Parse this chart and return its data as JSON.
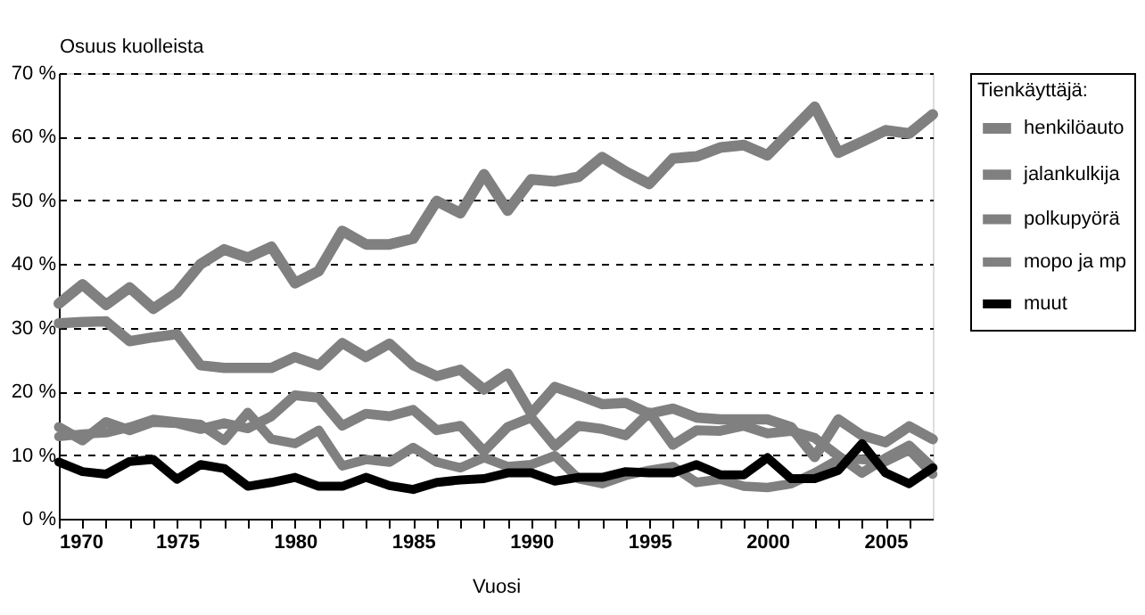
{
  "chart_data": {
    "type": "line",
    "xlabel": "Vuosi",
    "ylabel": "Osuus kuolleista",
    "legend_title": "Tienkäyttäjä:",
    "legend": "right",
    "grid": "y",
    "line_style": "solid",
    "marker": "none",
    "x": [
      1970,
      1971,
      1972,
      1973,
      1974,
      1975,
      1976,
      1977,
      1978,
      1979,
      1980,
      1981,
      1982,
      1983,
      1984,
      1985,
      1986,
      1987,
      1988,
      1989,
      1990,
      1991,
      1992,
      1993,
      1994,
      1995,
      1996,
      1997,
      1998,
      1999,
      2000,
      2001,
      2002,
      2003,
      2004,
      2005,
      2006,
      2007
    ],
    "xlim": [
      1970,
      2007
    ],
    "xticks": [
      1970,
      {
        "value": 1971,
        "label": null
      },
      {
        "value": 1972,
        "label": null
      },
      {
        "value": 1973,
        "label": null
      },
      {
        "value": 1974,
        "label": null
      },
      1975,
      {
        "value": 1976,
        "label": null
      },
      {
        "value": 1977,
        "label": null
      },
      {
        "value": 1978,
        "label": null
      },
      {
        "value": 1979,
        "label": null
      },
      1980,
      {
        "value": 1981,
        "label": null
      },
      {
        "value": 1982,
        "label": null
      },
      {
        "value": 1983,
        "label": null
      },
      {
        "value": 1984,
        "label": null
      },
      1985,
      {
        "value": 1986,
        "label": null
      },
      {
        "value": 1987,
        "label": null
      },
      {
        "value": 1988,
        "label": null
      },
      {
        "value": 1989,
        "label": null
      },
      1990,
      {
        "value": 1991,
        "label": null
      },
      {
        "value": 1992,
        "label": null
      },
      {
        "value": 1993,
        "label": null
      },
      {
        "value": 1994,
        "label": null
      },
      1995,
      {
        "value": 1996,
        "label": null
      },
      {
        "value": 1997,
        "label": null
      },
      {
        "value": 1998,
        "label": null
      },
      {
        "value": 1999,
        "label": null
      },
      2000,
      {
        "value": 2001,
        "label": null
      },
      {
        "value": 2002,
        "label": null
      },
      {
        "value": 2003,
        "label": null
      },
      {
        "value": 2004,
        "label": null
      },
      2005,
      {
        "value": 2006,
        "label": null
      }
    ],
    "ylim": [
      0,
      70
    ],
    "yticks": [
      {
        "value": 0,
        "label": "0 %"
      },
      {
        "value": 10,
        "label": "10 %"
      },
      {
        "value": 20,
        "label": "20 %"
      },
      {
        "value": 30,
        "label": "30 %"
      },
      {
        "value": 40,
        "label": "40 %"
      },
      {
        "value": 50,
        "label": "50 %"
      },
      {
        "value": 60,
        "label": "60 %"
      },
      {
        "value": 70,
        "label": "70 %"
      }
    ],
    "series": [
      {
        "name": "henkilöauto",
        "color": "#808080",
        "values": [
          33.8,
          36.8,
          33.6,
          36.3,
          33,
          35.5,
          40,
          42.3,
          41,
          42.7,
          37,
          38.9,
          45.2,
          43.1,
          43.1,
          44,
          49.9,
          48,
          54.1,
          48.4,
          53.3,
          53,
          53.7,
          56.8,
          54.5,
          52.6,
          56.6,
          56.9,
          58.3,
          58.7,
          57.1,
          60.9,
          64.7,
          57.5,
          59.2,
          61,
          60.5,
          63.5
        ]
      },
      {
        "name": "jalankulkija",
        "color": "#808080",
        "values": [
          30.7,
          30.9,
          31,
          27.9,
          28.5,
          29,
          24.1,
          23.7,
          23.7,
          23.7,
          25.4,
          24.1,
          27.6,
          25.4,
          27.5,
          24.1,
          22.4,
          23.4,
          20.3,
          22.8,
          16.5,
          20.7,
          19.4,
          18,
          18.2,
          16.5,
          17.3,
          15.9,
          15.6,
          15.6,
          15.6,
          14.4,
          9.7,
          15.6,
          13.1,
          12,
          14.5,
          12.5
        ]
      },
      {
        "name": "polkupyörä",
        "color": "#808080",
        "values": [
          14.4,
          12.3,
          15.2,
          13.9,
          15.2,
          15,
          14.1,
          15,
          14.2,
          16.1,
          19.4,
          19,
          14.6,
          16.5,
          16.1,
          17.1,
          13.9,
          14.6,
          10.6,
          14.4,
          15.9,
          11.4,
          14.6,
          14.1,
          13.1,
          16.7,
          11.6,
          13.9,
          13.8,
          14.6,
          13.4,
          13.8,
          12.7,
          9.9,
          7.2,
          9.5,
          11.5,
          8
        ]
      },
      {
        "name": "mopo ja mp",
        "color": "#808080",
        "values": [
          12.9,
          13.3,
          13.5,
          14.4,
          15.6,
          15.2,
          14.8,
          12.3,
          16.7,
          12.5,
          11.8,
          13.9,
          8.3,
          9.3,
          8.9,
          11.2,
          8.9,
          8,
          9.6,
          8.2,
          8.5,
          9.9,
          6.3,
          5.5,
          6.8,
          7.6,
          8.2,
          5.7,
          6.2,
          5.1,
          4.9,
          5.5,
          7.2,
          9.3,
          9.3,
          9,
          10.8,
          7
        ]
      },
      {
        "name": "muut",
        "color": "#000000",
        "values": [
          8.9,
          7.4,
          7,
          9,
          9.3,
          6.2,
          8.5,
          7.9,
          5.1,
          5.7,
          6.5,
          5.1,
          5.1,
          6.5,
          5.2,
          4.6,
          5.7,
          6.1,
          6.3,
          7.2,
          7.2,
          5.9,
          6.5,
          6.5,
          7.4,
          7.2,
          7.2,
          8.5,
          6.9,
          6.9,
          9.6,
          6.3,
          6.3,
          7.6,
          11.8,
          7.2,
          5.5,
          8
        ]
      }
    ]
  }
}
